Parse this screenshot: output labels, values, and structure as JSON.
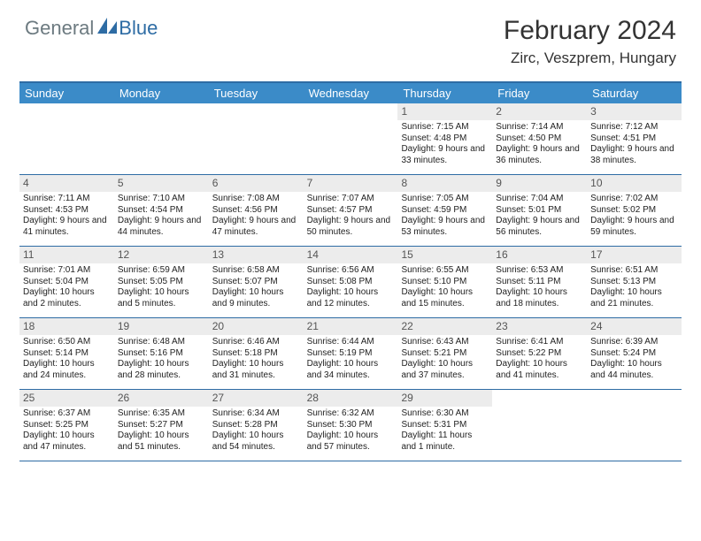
{
  "brand": {
    "general": "General",
    "blue": "Blue"
  },
  "title": "February 2024",
  "location": "Zirc, Veszprem, Hungary",
  "colors": {
    "header_bar": "#3b8bc8",
    "border": "#2e6ca4",
    "daynum_bg": "#ececec",
    "logo_gray": "#6c7a80",
    "logo_blue": "#2e6ca4"
  },
  "dayNames": [
    "Sunday",
    "Monday",
    "Tuesday",
    "Wednesday",
    "Thursday",
    "Friday",
    "Saturday"
  ],
  "weeks": [
    [
      null,
      null,
      null,
      null,
      {
        "n": "1",
        "sr": "7:15 AM",
        "ss": "4:48 PM",
        "dl": "9 hours and 33 minutes."
      },
      {
        "n": "2",
        "sr": "7:14 AM",
        "ss": "4:50 PM",
        "dl": "9 hours and 36 minutes."
      },
      {
        "n": "3",
        "sr": "7:12 AM",
        "ss": "4:51 PM",
        "dl": "9 hours and 38 minutes."
      }
    ],
    [
      {
        "n": "4",
        "sr": "7:11 AM",
        "ss": "4:53 PM",
        "dl": "9 hours and 41 minutes."
      },
      {
        "n": "5",
        "sr": "7:10 AM",
        "ss": "4:54 PM",
        "dl": "9 hours and 44 minutes."
      },
      {
        "n": "6",
        "sr": "7:08 AM",
        "ss": "4:56 PM",
        "dl": "9 hours and 47 minutes."
      },
      {
        "n": "7",
        "sr": "7:07 AM",
        "ss": "4:57 PM",
        "dl": "9 hours and 50 minutes."
      },
      {
        "n": "8",
        "sr": "7:05 AM",
        "ss": "4:59 PM",
        "dl": "9 hours and 53 minutes."
      },
      {
        "n": "9",
        "sr": "7:04 AM",
        "ss": "5:01 PM",
        "dl": "9 hours and 56 minutes."
      },
      {
        "n": "10",
        "sr": "7:02 AM",
        "ss": "5:02 PM",
        "dl": "9 hours and 59 minutes."
      }
    ],
    [
      {
        "n": "11",
        "sr": "7:01 AM",
        "ss": "5:04 PM",
        "dl": "10 hours and 2 minutes."
      },
      {
        "n": "12",
        "sr": "6:59 AM",
        "ss": "5:05 PM",
        "dl": "10 hours and 5 minutes."
      },
      {
        "n": "13",
        "sr": "6:58 AM",
        "ss": "5:07 PM",
        "dl": "10 hours and 9 minutes."
      },
      {
        "n": "14",
        "sr": "6:56 AM",
        "ss": "5:08 PM",
        "dl": "10 hours and 12 minutes."
      },
      {
        "n": "15",
        "sr": "6:55 AM",
        "ss": "5:10 PM",
        "dl": "10 hours and 15 minutes."
      },
      {
        "n": "16",
        "sr": "6:53 AM",
        "ss": "5:11 PM",
        "dl": "10 hours and 18 minutes."
      },
      {
        "n": "17",
        "sr": "6:51 AM",
        "ss": "5:13 PM",
        "dl": "10 hours and 21 minutes."
      }
    ],
    [
      {
        "n": "18",
        "sr": "6:50 AM",
        "ss": "5:14 PM",
        "dl": "10 hours and 24 minutes."
      },
      {
        "n": "19",
        "sr": "6:48 AM",
        "ss": "5:16 PM",
        "dl": "10 hours and 28 minutes."
      },
      {
        "n": "20",
        "sr": "6:46 AM",
        "ss": "5:18 PM",
        "dl": "10 hours and 31 minutes."
      },
      {
        "n": "21",
        "sr": "6:44 AM",
        "ss": "5:19 PM",
        "dl": "10 hours and 34 minutes."
      },
      {
        "n": "22",
        "sr": "6:43 AM",
        "ss": "5:21 PM",
        "dl": "10 hours and 37 minutes."
      },
      {
        "n": "23",
        "sr": "6:41 AM",
        "ss": "5:22 PM",
        "dl": "10 hours and 41 minutes."
      },
      {
        "n": "24",
        "sr": "6:39 AM",
        "ss": "5:24 PM",
        "dl": "10 hours and 44 minutes."
      }
    ],
    [
      {
        "n": "25",
        "sr": "6:37 AM",
        "ss": "5:25 PM",
        "dl": "10 hours and 47 minutes."
      },
      {
        "n": "26",
        "sr": "6:35 AM",
        "ss": "5:27 PM",
        "dl": "10 hours and 51 minutes."
      },
      {
        "n": "27",
        "sr": "6:34 AM",
        "ss": "5:28 PM",
        "dl": "10 hours and 54 minutes."
      },
      {
        "n": "28",
        "sr": "6:32 AM",
        "ss": "5:30 PM",
        "dl": "10 hours and 57 minutes."
      },
      {
        "n": "29",
        "sr": "6:30 AM",
        "ss": "5:31 PM",
        "dl": "11 hours and 1 minute."
      },
      null,
      null
    ]
  ],
  "labels": {
    "sunrise": "Sunrise:",
    "sunset": "Sunset:",
    "daylight": "Daylight:"
  }
}
